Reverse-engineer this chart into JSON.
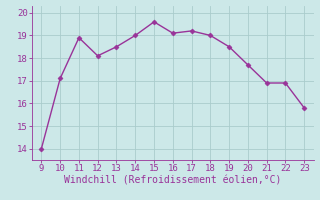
{
  "x": [
    9,
    10,
    11,
    12,
    13,
    14,
    15,
    16,
    17,
    18,
    19,
    20,
    21,
    22,
    23
  ],
  "y": [
    14.0,
    17.1,
    18.9,
    18.1,
    18.5,
    19.0,
    19.6,
    19.1,
    19.2,
    19.0,
    18.5,
    17.7,
    16.9,
    16.9,
    15.8
  ],
  "line_color": "#993399",
  "marker": "D",
  "marker_size": 2.5,
  "bg_color": "#cce8e8",
  "grid_color": "#aacccc",
  "xlabel": "Windchill (Refroidissement éolien,°C)",
  "xlabel_color": "#993399",
  "tick_color": "#993399",
  "xlim": [
    8.5,
    23.5
  ],
  "ylim": [
    13.5,
    20.3
  ],
  "yticks": [
    14,
    15,
    16,
    17,
    18,
    19,
    20
  ],
  "xticks": [
    9,
    10,
    11,
    12,
    13,
    14,
    15,
    16,
    17,
    18,
    19,
    20,
    21,
    22,
    23
  ],
  "tick_fontsize": 6.5,
  "xlabel_fontsize": 7
}
